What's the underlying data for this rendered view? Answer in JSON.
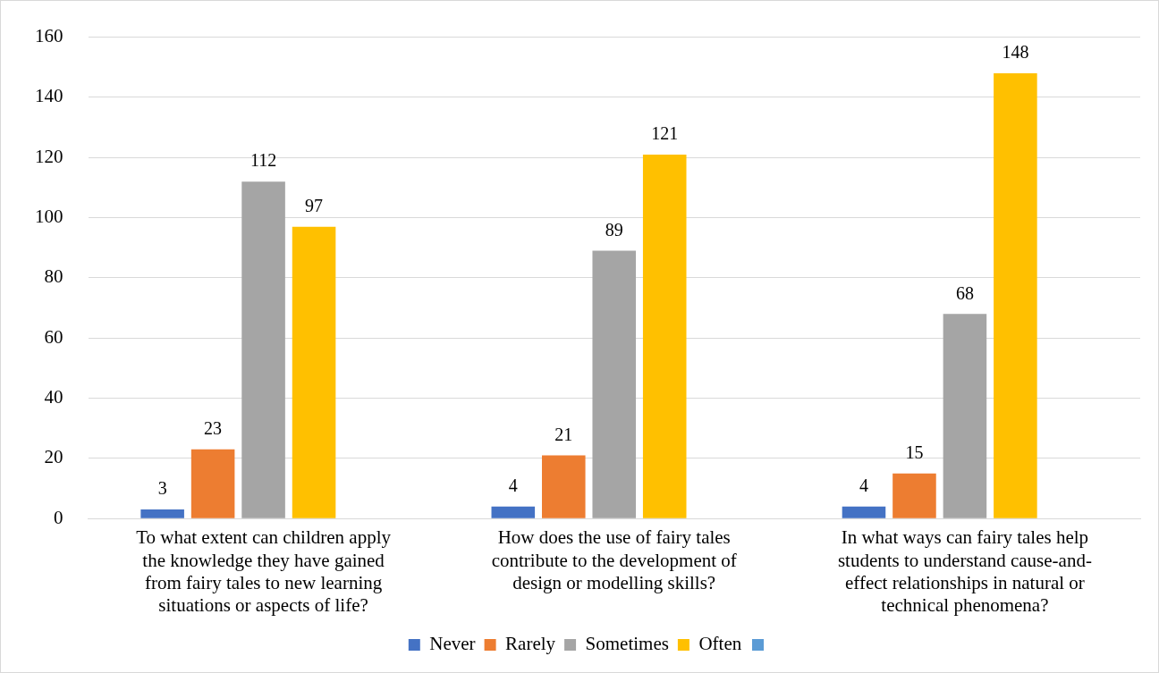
{
  "chart_data": {
    "type": "bar",
    "categories": [
      "To what extent can children apply the knowledge they have gained from fairy tales to new learning situations or aspects of life?",
      "How does the use of fairy tales contribute to the development of design or modelling skills?",
      "In what ways can fairy tales help students to understand cause-and-effect relationships in natural or technical phenomena?"
    ],
    "series": [
      {
        "name": "Never",
        "color": "#4472c4",
        "values": [
          3,
          4,
          4
        ]
      },
      {
        "name": "Rarely",
        "color": "#ed7d31",
        "values": [
          23,
          21,
          15
        ]
      },
      {
        "name": "Sometimes",
        "color": "#a5a5a5",
        "values": [
          112,
          89,
          68
        ]
      },
      {
        "name": "Often",
        "color": "#ffc000",
        "values": [
          97,
          121,
          148
        ]
      },
      {
        "color": "#5b9bd5",
        "values": [
          null,
          null,
          null
        ]
      }
    ],
    "ylim": [
      0,
      160
    ],
    "yticks": [
      0,
      20,
      40,
      60,
      80,
      100,
      120,
      140,
      160
    ],
    "grid": "y",
    "legend": "bottom",
    "data_labels": true
  }
}
